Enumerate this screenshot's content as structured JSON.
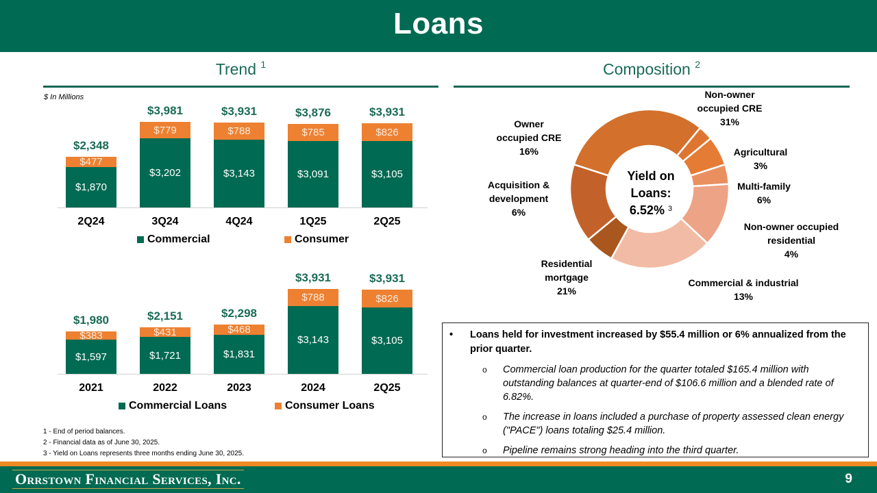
{
  "header": {
    "title": "Loans"
  },
  "trend": {
    "title": "Trend",
    "footnote_ref": "1",
    "units": "$ In Millions"
  },
  "composition": {
    "title": "Composition",
    "footnote_ref": "2",
    "center": {
      "line1": "Yield on",
      "line2": "Loans:",
      "value": "6.52%",
      "footnote_ref": "3"
    }
  },
  "chart_data": [
    {
      "type": "bar",
      "stacked": true,
      "title": "Trend (quarterly)",
      "units": "$ In Millions",
      "categories": [
        "2Q24",
        "3Q24",
        "4Q24",
        "1Q25",
        "2Q25"
      ],
      "series": [
        {
          "name": "Commercial",
          "color": "#006A52",
          "values": [
            1870,
            3202,
            3143,
            3091,
            3105
          ],
          "labels": [
            "$1,870",
            "$3,202",
            "$3,143",
            "$3,091",
            "$3,105"
          ]
        },
        {
          "name": "Consumer",
          "color": "#ED8131",
          "values": [
            477,
            779,
            788,
            785,
            826
          ],
          "labels": [
            "$477",
            "$779",
            "$788",
            "$785",
            "$826"
          ]
        }
      ],
      "totals": [
        2348,
        3981,
        3931,
        3876,
        3931
      ],
      "total_labels": [
        "$2,348",
        "$3,981",
        "$3,931",
        "$3,876",
        "$3,931"
      ],
      "legend": [
        "Commercial",
        "Consumer"
      ],
      "legend_position": "bottom",
      "grid": false
    },
    {
      "type": "bar",
      "stacked": true,
      "title": "Trend (annual)",
      "units": "$ In Millions",
      "categories": [
        "2021",
        "2022",
        "2023",
        "2024",
        "2Q25"
      ],
      "series": [
        {
          "name": "Commercial Loans",
          "color": "#006A52",
          "values": [
            1597,
            1721,
            1831,
            3143,
            3105
          ],
          "labels": [
            "$1,597",
            "$1,721",
            "$1,831",
            "$3,143",
            "$3,105"
          ]
        },
        {
          "name": "Consumer Loans",
          "color": "#ED8131",
          "values": [
            383,
            431,
            468,
            788,
            826
          ],
          "labels": [
            "$383",
            "$431",
            "$468",
            "$788",
            "$826"
          ]
        }
      ],
      "totals": [
        1980,
        2151,
        2298,
        3931,
        3931
      ],
      "total_labels": [
        "$1,980",
        "$2,151",
        "$2,298",
        "$3,931",
        "$3,931"
      ],
      "legend": [
        "Commercial Loans",
        "Consumer Loans"
      ],
      "legend_position": "bottom",
      "grid": false
    },
    {
      "type": "pie",
      "donut": true,
      "title": "Composition",
      "center_text": "Yield on Loans: 6.52%",
      "slices": [
        {
          "label": "Non-owner occupied CRE",
          "value": 31,
          "color": "#D2702C"
        },
        {
          "label": "Agricultural",
          "value": 3,
          "color": "#DE7631"
        },
        {
          "label": "Multi-family",
          "value": 6,
          "color": "#E57C35"
        },
        {
          "label": "Non-owner occupied residential",
          "value": 4,
          "color": "#EA9060"
        },
        {
          "label": "Commercial & industrial",
          "value": 13,
          "color": "#EDA385"
        },
        {
          "label": "Residential mortgage",
          "value": 21,
          "color": "#F2BBA5"
        },
        {
          "label": "Acquisition & development",
          "value": 6,
          "color": "#A9561F"
        },
        {
          "label": "Owner occupied CRE",
          "value": 16,
          "color": "#C2622A"
        }
      ]
    }
  ],
  "donut_labels": [
    {
      "lines": [
        "Non-owner",
        "occupied CRE"
      ],
      "pct": "31%"
    },
    {
      "lines": [
        "Agricultural"
      ],
      "pct": "3%"
    },
    {
      "lines": [
        "Multi-family"
      ],
      "pct": "6%"
    },
    {
      "lines": [
        "Non-owner occupied",
        "residential"
      ],
      "pct": "4%"
    },
    {
      "lines": [
        "Commercial & industrial"
      ],
      "pct": "13%"
    },
    {
      "lines": [
        "Residential",
        "mortgage"
      ],
      "pct": "21%"
    },
    {
      "lines": [
        "Acquisition &",
        "development"
      ],
      "pct": "6%"
    },
    {
      "lines": [
        "Owner",
        "occupied CRE"
      ],
      "pct": "16%"
    }
  ],
  "notes": {
    "bullet": "Loans held for investment increased by $55.4 million or 6% annualized from the prior quarter.",
    "subs": [
      "Commercial loan production for the quarter totaled $165.4 million with outstanding balances at quarter-end of $106.6 million and a blended rate of 6.82%.",
      "The increase in loans included a purchase of property assessed clean energy (\"PACE\") loans totaling $25.4 million.",
      "Pipeline remains strong heading into the third quarter."
    ]
  },
  "footnotes": [
    "1 - End of period balances.",
    "2 - Financial data as of June 30, 2025.",
    "3 - Yield on Loans represents three months ending June 30, 2025."
  ],
  "footer": {
    "company": "Orrstown Financial Services, Inc.",
    "page": "9"
  }
}
